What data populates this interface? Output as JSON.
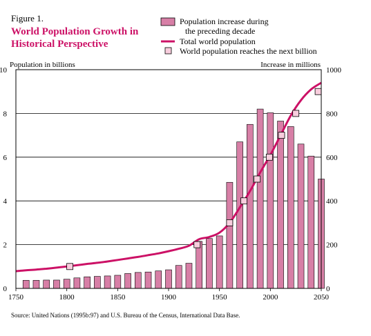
{
  "figure_label": "Figure 1.",
  "chart_data": {
    "type": "bar",
    "title_lines": [
      "World Population Growth in",
      "Historical Perspective"
    ],
    "left_axis_label": "Population in billions",
    "right_axis_label": "Increase in millions",
    "xlim": [
      1750,
      2050
    ],
    "x_ticks": [
      "1750",
      "1800",
      "1850",
      "1900",
      "1950",
      "2000",
      "2050"
    ],
    "x_tick_values": [
      1750,
      1800,
      1850,
      1900,
      1950,
      2000,
      2050
    ],
    "left_ylim": [
      0,
      10
    ],
    "left_ticks": [
      "0",
      "2",
      "4",
      "6",
      "8",
      "10"
    ],
    "left_tick_values": [
      0,
      2,
      4,
      6,
      8,
      10
    ],
    "right_ylim": [
      0,
      1000
    ],
    "right_ticks": [
      "0",
      "200",
      "400",
      "600",
      "800",
      "1000"
    ],
    "right_tick_values": [
      0,
      200,
      400,
      600,
      800,
      1000
    ],
    "grid": "horizontal",
    "legend_position": "top-right",
    "legend": [
      {
        "label_lines": [
          "Population increase during",
          "the preceding decade"
        ],
        "kind": "bar"
      },
      {
        "label_lines": [
          "Total world population"
        ],
        "kind": "line"
      },
      {
        "label_lines": [
          "World population reaches the next billion"
        ],
        "kind": "marker"
      }
    ],
    "colors": {
      "bar_fill": "#d77fa6",
      "line": "#cc1166",
      "marker_fill": "#f8cddd",
      "grid": "#000000"
    },
    "series": [
      {
        "type": "bar",
        "x": [
          1760,
          1770,
          1780,
          1790,
          1800,
          1810,
          1820,
          1830,
          1840,
          1850,
          1860,
          1870,
          1880,
          1890,
          1900,
          1910,
          1920,
          1930,
          1940,
          1950,
          1960,
          1970,
          1980,
          1990,
          2000,
          2010,
          2020,
          2030,
          2040,
          2050
        ],
        "values": [
          37,
          37,
          38,
          38,
          42,
          48,
          53,
          55,
          57,
          60,
          68,
          73,
          75,
          80,
          85,
          105,
          115,
          215,
          228,
          240,
          485,
          670,
          750,
          820,
          803,
          765,
          740,
          660,
          605,
          500
        ]
      },
      {
        "type": "line",
        "x": [
          1750,
          1760,
          1770,
          1780,
          1790,
          1800,
          1810,
          1820,
          1830,
          1840,
          1850,
          1860,
          1870,
          1880,
          1890,
          1900,
          1910,
          1920,
          1930,
          1940,
          1950,
          1960,
          1970,
          1980,
          1990,
          2000,
          2010,
          2020,
          2030,
          2040,
          2050
        ],
        "values": [
          0.79,
          0.83,
          0.86,
          0.9,
          0.95,
          1.0,
          1.06,
          1.12,
          1.17,
          1.23,
          1.3,
          1.37,
          1.44,
          1.52,
          1.6,
          1.7,
          1.81,
          1.95,
          2.25,
          2.35,
          2.55,
          3.0,
          3.7,
          4.45,
          5.3,
          6.1,
          7.0,
          7.9,
          8.6,
          9.1,
          9.4
        ]
      },
      {
        "type": "marker",
        "x": [
          1803,
          1928,
          1960,
          1974,
          1987,
          1999,
          2011,
          2025,
          2047
        ],
        "values": [
          1,
          2,
          3,
          4,
          5,
          6,
          7,
          8,
          9
        ]
      }
    ]
  },
  "source_note": "Source: United Nations (1995b:97) and U.S. Bureau of the Census, International Data Base."
}
